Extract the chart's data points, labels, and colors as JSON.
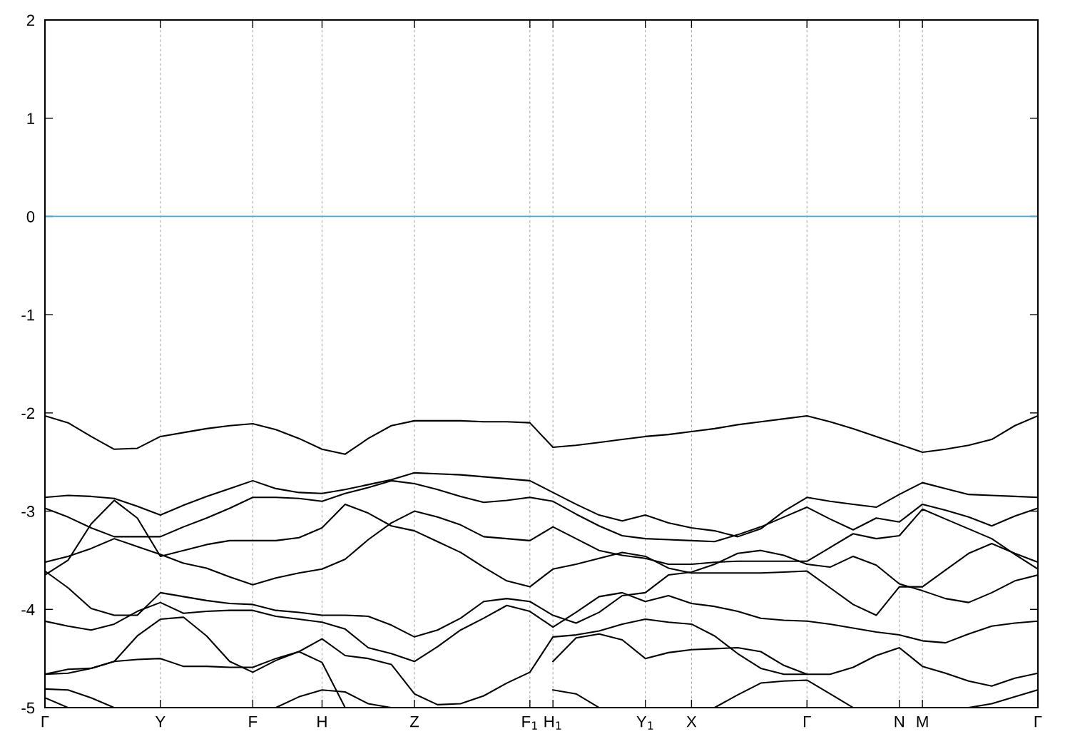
{
  "chart_data": {
    "type": "line",
    "ylim": [
      -5,
      2
    ],
    "yticks": [
      -5,
      -4,
      -3,
      -2,
      -1,
      0,
      1,
      2
    ],
    "categories": [
      "Γ",
      null,
      null,
      null,
      null,
      "Y",
      null,
      null,
      null,
      "F",
      null,
      null,
      "H",
      null,
      null,
      null,
      "Z",
      null,
      null,
      null,
      null,
      "F$_{1}$",
      "H$_{1}$",
      null,
      null,
      null,
      "Y$_{1}$",
      null,
      "X",
      null,
      null,
      null,
      null,
      "Γ",
      null,
      null,
      null,
      "N",
      "M",
      null,
      null,
      null,
      null,
      "Γ"
    ],
    "grid": "x",
    "line_style": "solid",
    "marker": "none",
    "ref_lines": [
      {
        "axis": "y",
        "value": 0,
        "color": "#4aa8d8"
      }
    ],
    "series": [
      {
        "color": "#000000",
        "values": [
          -2.03,
          -2.1,
          -2.24,
          -2.37,
          -2.36,
          -2.24,
          -2.2,
          -2.16,
          -2.13,
          -2.11,
          -2.17,
          -2.26,
          -2.37,
          -2.42,
          -2.26,
          -2.13,
          -2.08,
          -2.08,
          -2.08,
          -2.09,
          -2.09,
          -2.1,
          -2.35,
          -2.33,
          -2.3,
          -2.27,
          -2.24,
          -2.22,
          -2.19,
          -2.16,
          -2.12,
          -2.09,
          -2.06,
          -2.03,
          -2.09,
          -2.16,
          -2.24,
          -2.32,
          -2.4,
          -2.37,
          -2.33,
          -2.27,
          -2.13,
          -2.03
        ]
      },
      {
        "color": "#000000",
        "values": [
          -2.86,
          -2.84,
          -2.85,
          -2.87,
          -2.95,
          -3.04,
          -2.94,
          -2.85,
          -2.77,
          -2.69,
          -2.77,
          -2.81,
          -2.82,
          -2.78,
          -2.73,
          -2.68,
          -2.61,
          -2.62,
          -2.63,
          -2.65,
          -2.67,
          -2.69,
          -2.81,
          -2.93,
          -3.04,
          -3.1,
          -3.04,
          -3.12,
          -3.17,
          -3.2,
          -3.26,
          -3.18,
          -3.0,
          -2.86,
          -2.9,
          -2.93,
          -2.96,
          -2.83,
          -2.71,
          -2.77,
          -2.83,
          -2.84,
          -2.85,
          -2.86
        ]
      },
      {
        "color": "#000000",
        "values": [
          -2.97,
          -3.06,
          -3.17,
          -3.26,
          -3.26,
          -3.26,
          -3.16,
          -3.07,
          -2.97,
          -2.86,
          -2.86,
          -2.87,
          -2.9,
          -2.82,
          -2.76,
          -2.69,
          -2.72,
          -2.78,
          -2.85,
          -2.91,
          -2.89,
          -2.86,
          -2.9,
          -3.03,
          -3.15,
          -3.25,
          -3.28,
          -3.29,
          -3.3,
          -3.31,
          -3.24,
          -3.16,
          -3.06,
          -2.96,
          -3.08,
          -3.19,
          -3.07,
          -3.11,
          -2.93,
          -2.99,
          -3.06,
          -3.15,
          -3.05,
          -2.97
        ]
      },
      {
        "color": "#000000",
        "values": [
          -3.65,
          -3.5,
          -3.13,
          -2.89,
          -3.07,
          -3.46,
          -3.4,
          -3.34,
          -3.3,
          -3.3,
          -3.3,
          -3.27,
          -3.17,
          -2.93,
          -3.02,
          -3.15,
          -3.2,
          -3.31,
          -3.42,
          -3.57,
          -3.71,
          -3.77,
          -3.59,
          -3.54,
          -3.48,
          -3.42,
          -3.46,
          -3.58,
          -3.63,
          -3.63,
          -3.63,
          -3.63,
          -3.62,
          -3.61,
          -3.78,
          -3.95,
          -4.06,
          -3.77,
          -3.77,
          -3.6,
          -3.43,
          -3.33,
          -3.43,
          -3.52
        ]
      },
      {
        "color": "#000000",
        "values": [
          -3.61,
          -3.78,
          -3.99,
          -4.06,
          -4.06,
          -3.83,
          -3.87,
          -3.91,
          -3.94,
          -3.95,
          -4.01,
          -4.03,
          -4.06,
          -4.06,
          -4.07,
          -4.16,
          -4.28,
          -4.21,
          -4.09,
          -3.92,
          -3.89,
          -3.92,
          -4.06,
          -4.14,
          -4.03,
          -3.86,
          -3.83,
          -3.65,
          -3.62,
          -3.54,
          -3.43,
          -3.4,
          -3.45,
          -3.54,
          -3.57,
          -3.46,
          -3.55,
          -3.74,
          -3.81,
          -3.89,
          -3.93,
          -3.83,
          -3.71,
          -3.65
        ]
      },
      {
        "color": "#000000",
        "values": [
          -3.52,
          -3.46,
          -3.38,
          -3.28,
          -3.36,
          -3.44,
          -3.53,
          -3.58,
          -3.67,
          -3.75,
          -3.68,
          -3.63,
          -3.59,
          -3.49,
          -3.29,
          -3.12,
          -3.0,
          -3.06,
          -3.14,
          -3.26,
          -3.28,
          -3.3,
          -3.16,
          -3.28,
          -3.4,
          -3.45,
          -3.48,
          -3.54,
          -3.54,
          -3.52,
          -3.51,
          -3.51,
          -3.51,
          -3.51,
          -3.37,
          -3.23,
          -3.28,
          -3.25,
          -2.98,
          -3.08,
          -3.18,
          -3.28,
          -3.44,
          -3.59
        ]
      },
      {
        "color": "#000000",
        "values": [
          -4.12,
          -4.17,
          -4.21,
          -4.15,
          -4.02,
          -3.93,
          -4.04,
          -4.02,
          -4.01,
          -4.01,
          -4.07,
          -4.1,
          -4.13,
          -4.2,
          -4.39,
          -4.45,
          -4.53,
          -4.38,
          -4.21,
          -4.09,
          -3.96,
          -4.02,
          -4.18,
          -4.03,
          -3.87,
          -3.83,
          -3.92,
          -3.86,
          -3.94,
          -3.97,
          -4.02,
          -4.09,
          -4.11,
          -4.12,
          -4.15,
          -4.19,
          -4.23,
          -4.26,
          -4.32,
          -4.34,
          -4.25,
          -4.17,
          -4.14,
          -4.12
        ]
      },
      {
        "color": "#000000",
        "values": [
          -4.66,
          -4.65,
          -4.6,
          -4.53,
          -4.51,
          -4.5,
          -4.58,
          -4.58,
          -4.59,
          -4.59,
          -4.5,
          -4.43,
          -4.54,
          -5.0,
          null,
          null,
          null,
          null,
          null,
          null,
          null,
          null,
          null,
          null,
          null,
          null,
          null,
          null,
          null,
          null,
          null,
          null,
          null,
          null,
          null,
          null,
          null,
          null,
          null,
          null,
          null,
          null,
          null,
          null
        ]
      },
      {
        "color": "#000000",
        "values": [
          -4.66,
          -4.61,
          -4.6,
          -4.53,
          -4.27,
          -4.1,
          -4.08,
          -4.27,
          -4.53,
          -4.64,
          -4.52,
          -4.43,
          -4.3,
          -4.47,
          -4.5,
          -4.56,
          -4.86,
          -4.97,
          -4.96,
          -4.88,
          -4.75,
          -4.64,
          -4.28,
          -4.26,
          -4.22,
          -4.15,
          -4.1,
          -4.13,
          -4.15,
          -4.27,
          -4.45,
          -4.6,
          -4.66,
          -4.66,
          null,
          null,
          null,
          null,
          null,
          null,
          null,
          null,
          null,
          null
        ]
      },
      {
        "color": "#000000",
        "values": [
          null,
          null,
          null,
          null,
          null,
          null,
          null,
          null,
          null,
          null,
          null,
          null,
          null,
          null,
          null,
          null,
          null,
          null,
          null,
          null,
          null,
          null,
          -4.53,
          -4.29,
          -4.25,
          -4.31,
          -4.5,
          -4.44,
          -4.41,
          -4.4,
          -4.39,
          -4.43,
          -4.57,
          -4.66,
          -4.66,
          -4.59,
          -4.47,
          -4.39,
          -4.58,
          -4.65,
          -4.73,
          -4.78,
          -4.7,
          -4.65
        ]
      },
      {
        "color": "#000000",
        "values": [
          -4.81,
          -4.82,
          -4.9,
          -5.0,
          null,
          null,
          null,
          null,
          null,
          null,
          null,
          null,
          null,
          null,
          null,
          null,
          null,
          null,
          null,
          null,
          null,
          null,
          null,
          null,
          null,
          null,
          null,
          null,
          null,
          null,
          null,
          null,
          null,
          null,
          null,
          null,
          null,
          null,
          null,
          null,
          null,
          null,
          null,
          null
        ]
      },
      {
        "color": "#000000",
        "values": [
          -4.9,
          -5.0,
          null,
          null,
          null,
          null,
          null,
          null,
          null,
          null,
          null,
          null,
          null,
          null,
          null,
          null,
          null,
          null,
          null,
          null,
          null,
          null,
          null,
          null,
          null,
          null,
          null,
          null,
          null,
          null,
          null,
          null,
          null,
          null,
          null,
          null,
          null,
          null,
          null,
          null,
          null,
          null,
          null,
          null
        ]
      },
      {
        "color": "#000000",
        "values": [
          null,
          null,
          null,
          null,
          null,
          null,
          null,
          null,
          null,
          null,
          -5.0,
          -4.89,
          -4.82,
          -4.84,
          -4.96,
          -5.0,
          null,
          null,
          null,
          null,
          null,
          null,
          null,
          null,
          null,
          null,
          null,
          null,
          null,
          null,
          null,
          null,
          null,
          null,
          null,
          null,
          null,
          null,
          null,
          null,
          null,
          null,
          null,
          null
        ]
      },
      {
        "color": "#000000",
        "values": [
          null,
          null,
          null,
          null,
          null,
          null,
          null,
          null,
          null,
          null,
          null,
          null,
          null,
          null,
          null,
          null,
          null,
          null,
          null,
          null,
          null,
          null,
          -4.82,
          -4.86,
          -5.0,
          null,
          null,
          null,
          null,
          null,
          null,
          null,
          null,
          null,
          null,
          null,
          null,
          null,
          null,
          null,
          null,
          null,
          null,
          null
        ]
      },
      {
        "color": "#000000",
        "values": [
          null,
          null,
          null,
          null,
          null,
          null,
          null,
          null,
          null,
          null,
          null,
          null,
          null,
          null,
          null,
          null,
          null,
          null,
          null,
          null,
          null,
          null,
          null,
          null,
          null,
          null,
          null,
          null,
          null,
          -5.0,
          -4.87,
          -4.75,
          -4.73,
          -4.72,
          -4.86,
          -5.0,
          null,
          null,
          null,
          null,
          null,
          null,
          null,
          null
        ]
      },
      {
        "color": "#000000",
        "values": [
          null,
          null,
          null,
          null,
          null,
          null,
          null,
          null,
          null,
          null,
          null,
          null,
          null,
          null,
          null,
          null,
          null,
          null,
          null,
          null,
          null,
          null,
          null,
          null,
          null,
          null,
          null,
          null,
          null,
          null,
          null,
          null,
          null,
          null,
          null,
          null,
          null,
          null,
          null,
          null,
          -5.0,
          -4.96,
          -4.89,
          -4.82
        ]
      }
    ]
  }
}
